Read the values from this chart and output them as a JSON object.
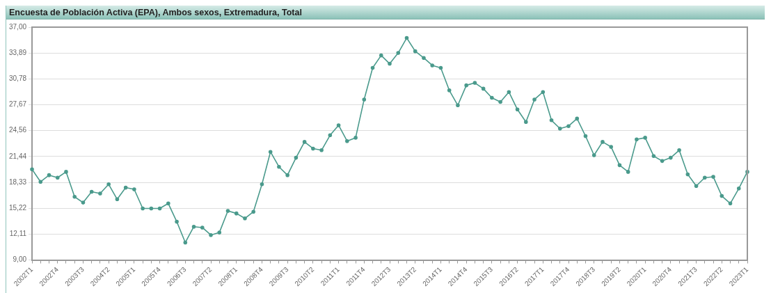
{
  "chart_data": {
    "type": "line",
    "title": "Encuesta de Población Activa (EPA), Ambos sexos, Extremadura, Total",
    "categories": [
      "2002T1",
      null,
      null,
      "2002T4",
      null,
      null,
      "2003T3",
      null,
      null,
      "2004T2",
      null,
      null,
      "2005T1",
      null,
      null,
      "2005T4",
      null,
      null,
      "2006T3",
      null,
      null,
      "2007T2",
      null,
      null,
      "2008T1",
      null,
      null,
      "2008T4",
      null,
      null,
      "2009T3",
      null,
      null,
      "2010T2",
      null,
      null,
      "2011T1",
      null,
      null,
      "2011T4",
      null,
      null,
      "2012T3",
      null,
      null,
      "2013T2",
      null,
      null,
      "2014T1",
      null,
      null,
      "2014T4",
      null,
      null,
      "2015T3",
      null,
      null,
      "2016T2",
      null,
      null,
      "2017T1",
      null,
      null,
      "2017T4",
      null,
      null,
      "2018T3",
      null,
      null,
      "2019T2",
      null,
      null,
      "2020T1",
      null,
      null,
      "2020T4",
      null,
      null,
      "2021T3",
      null,
      null,
      "2022T2",
      null,
      null,
      "2023T1"
    ],
    "series": [
      {
        "color": "#4a9a8c",
        "values": [
          19.9,
          18.4,
          19.2,
          18.9,
          19.6,
          16.6,
          15.9,
          17.2,
          17.0,
          18.1,
          16.3,
          17.7,
          17.5,
          15.2,
          15.2,
          15.2,
          15.8,
          13.6,
          11.1,
          13.0,
          12.9,
          12.0,
          12.3,
          14.9,
          14.6,
          14.0,
          14.8,
          18.1,
          22.0,
          20.2,
          19.2,
          21.3,
          23.2,
          22.4,
          22.2,
          24.0,
          25.2,
          23.3,
          23.7,
          28.3,
          32.1,
          33.6,
          32.6,
          33.9,
          35.7,
          34.1,
          33.3,
          32.4,
          32.1,
          29.4,
          27.6,
          30.0,
          30.3,
          29.6,
          28.5,
          28.0,
          29.2,
          27.1,
          25.6,
          28.3,
          29.2,
          25.8,
          24.8,
          25.1,
          26.0,
          23.9,
          21.6,
          23.2,
          22.6,
          20.4,
          19.6,
          23.5,
          23.7,
          21.5,
          20.9,
          21.3,
          22.2,
          19.3,
          17.9,
          18.9,
          19.0,
          16.7,
          15.8,
          17.6,
          19.6
        ]
      }
    ],
    "ylim": [
      9,
      37
    ],
    "yticks": [
      {
        "value": 9,
        "label": "9,00"
      },
      {
        "value": 12.11,
        "label": "12,11"
      },
      {
        "value": 15.22,
        "label": "15,22"
      },
      {
        "value": 18.33,
        "label": "18,33"
      },
      {
        "value": 21.44,
        "label": "21,44"
      },
      {
        "value": 24.56,
        "label": "24,56"
      },
      {
        "value": 27.67,
        "label": "27,67"
      },
      {
        "value": 30.78,
        "label": "30,78"
      },
      {
        "value": 33.89,
        "label": "33,89"
      },
      {
        "value": 37,
        "label": "37,00"
      }
    ],
    "grid": "y",
    "legend": false,
    "marker": "circle",
    "line_style": "solid"
  }
}
